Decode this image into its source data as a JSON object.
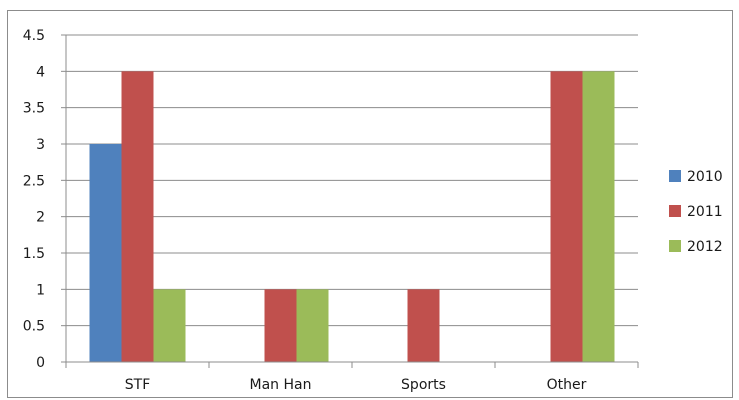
{
  "chart_data": {
    "type": "bar",
    "title": "",
    "xlabel": "",
    "ylabel": "",
    "categories": [
      "STF",
      "Man Han",
      "Sports",
      "Other"
    ],
    "series": [
      {
        "name": "2010",
        "values": [
          3,
          0,
          0,
          0
        ],
        "color": "#4f81bd"
      },
      {
        "name": "2011",
        "values": [
          4,
          1,
          1,
          4
        ],
        "color": "#c0504d"
      },
      {
        "name": "2012",
        "values": [
          1,
          1,
          0,
          4
        ],
        "color": "#9bbb59"
      }
    ],
    "ylim": [
      0,
      4.5
    ],
    "yticks": [
      "0",
      "0.5",
      "1",
      "1.5",
      "2",
      "2.5",
      "3",
      "3.5",
      "4",
      "4.5"
    ],
    "grid": true,
    "legend_position": "right"
  }
}
